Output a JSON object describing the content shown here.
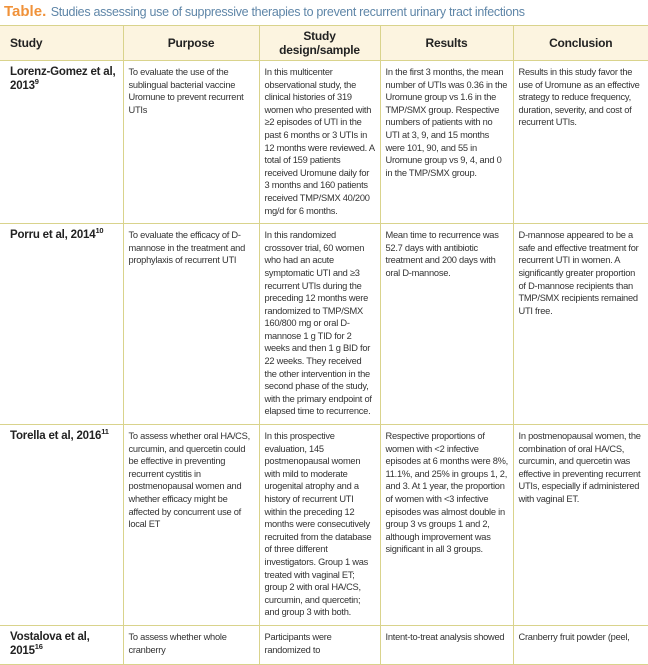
{
  "title": {
    "label": "Table.",
    "caption": "Studies assessing use of suppressive therapies to prevent recurrent urinary tract infections"
  },
  "colors": {
    "title_label": "#f0923a",
    "caption": "#5f86a8",
    "header_bg": "#fcf4e0",
    "rule": "#d9d38c"
  },
  "columns": [
    "Study",
    "Purpose",
    "Study design/sample",
    "Results",
    "Conclusion"
  ],
  "rows": [
    {
      "study": "Lorenz-Gomez et al, 2013",
      "ref": "9",
      "purpose": "To evaluate the use of the sublingual bacterial vaccine Uromune to prevent recurrent UTIs",
      "design": "In this multicenter observational study, the clinical histories of 319 women who presented with ≥2 episodes of UTI in the past 6 months or 3 UTIs in 12 months were reviewed. A total of 159 patients received Uromune daily for 3 months and 160 patients received TMP/SMX 40/200 mg/d for 6 months.",
      "results": "In the first 3 months, the mean number of UTIs was 0.36 in the Uromune group vs 1.6 in the TMP/SMX group. Respective numbers of patients with no UTI at 3, 9, and 15 months were 101, 90, and 55 in Uromune group vs 9, 4, and 0 in the TMP/SMX group.",
      "conclusion": "Results in this study favor the use of Uromune as an effective strategy to reduce frequency, duration, severity, and cost of recurrent UTIs."
    },
    {
      "study": "Porru et al, 2014",
      "ref": "10",
      "purpose": "To evaluate the efficacy of D-mannose in the treatment and prophylaxis of recurrent UTI",
      "design": "In this randomized crossover trial, 60 women who had an acute symptomatic UTI and ≥3 recurrent UTIs during the preceding 12 months were randomized to TMP/SMX 160/800 mg or oral D-mannose 1 g TID for 2 weeks and then 1 g BID for 22 weeks. They received the other intervention in the second phase of the study, with the primary endpoint of elapsed time to recurrence.",
      "results": "Mean time to recurrence was 52.7 days with antibiotic treatment and 200 days with oral D-mannose.",
      "conclusion": "D-mannose appeared to be a safe and effective treatment for recurrent UTI in women. A significantly greater proportion of D-mannose recipients than TMP/SMX recipients remained UTI free."
    },
    {
      "study": "Torella et al, 2016",
      "ref": "11",
      "purpose": "To assess whether oral HA/CS, curcumin, and quercetin could be effective in preventing recurrent cystitis in postmenopausal women and whether efficacy might be affected by concurrent use of local ET",
      "design": "In this prospective evaluation, 145 postmenopausal women with mild to moderate urogenital atrophy and a history of recurrent UTI within the preceding 12 months were consecutively recruited from the database of three different investigators. Group 1 was treated with vaginal ET; group 2 with oral HA/CS, curcumin, and quercetin; and group 3 with both.",
      "results": "Respective proportions of women with <2 infective episodes at 6 months were 8%, 11.1%, and 25% in groups 1, 2, and 3. At 1 year, the proportion of women with <3 infective episodes was almost double in group 3 vs groups 1 and 2, although improvement was significant in all 3 groups.",
      "conclusion": "In postmenopausal women, the combination of oral HA/CS, curcumin, and quercetin was effective in preventing recurrent UTIs, especially if administered with vaginal ET."
    },
    {
      "study": "Vostalova et al, 2015",
      "ref": "16",
      "purpose": "To assess whether whole cranberry",
      "design": "Participants were randomized to",
      "results": "Intent-to-treat analysis showed",
      "conclusion": "Cranberry fruit powder (peel,"
    }
  ]
}
